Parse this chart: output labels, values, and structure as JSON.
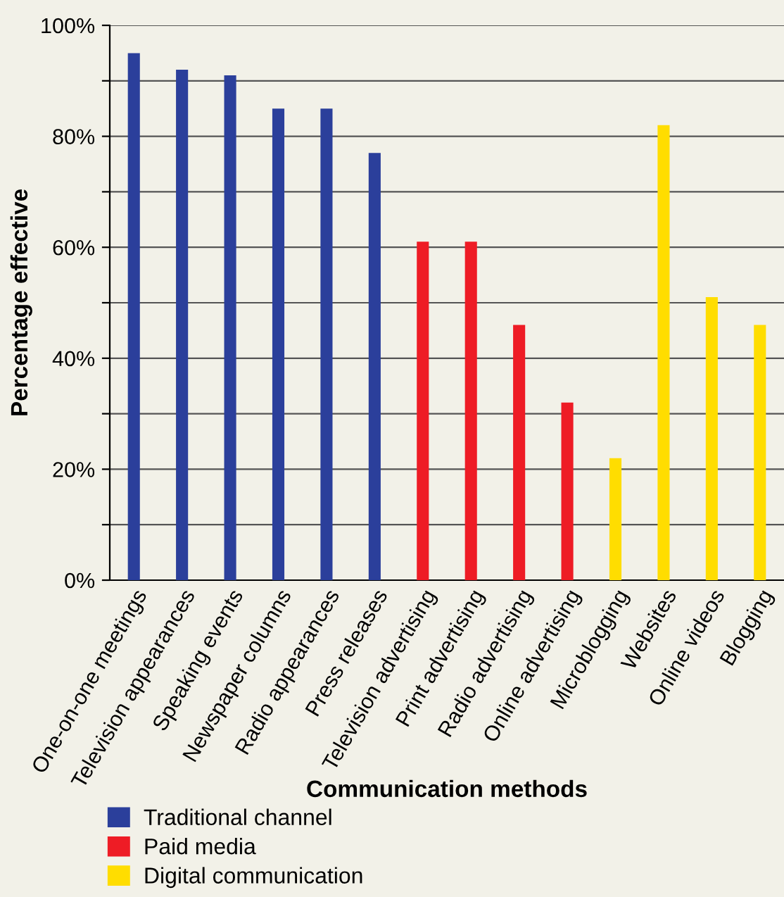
{
  "chart_data": {
    "type": "bar",
    "xlabel": "Communication methods",
    "ylabel": "Percentage effective",
    "categories": [
      "One-on-one meetings",
      "Television appearances",
      "Speaking events",
      "Newspaper columns",
      "Radio appearances",
      "Press releases",
      "Television advertising",
      "Print advertising",
      "Radio advertising",
      "Online advertising",
      "Microblogging",
      "Websites",
      "Online videos",
      "Blogging"
    ],
    "series": [
      {
        "name": "Traditional channel",
        "color": "#2b3f9b",
        "values": [
          95,
          92,
          91,
          85,
          85,
          77,
          null,
          null,
          null,
          null,
          null,
          null,
          null,
          null
        ]
      },
      {
        "name": "Paid media",
        "color": "#ee1c25",
        "values": [
          null,
          null,
          null,
          null,
          null,
          null,
          61,
          61,
          46,
          32,
          null,
          null,
          null,
          null
        ]
      },
      {
        "name": "Digital communication",
        "color": "#ffdd00",
        "values": [
          null,
          null,
          null,
          null,
          null,
          null,
          null,
          null,
          null,
          null,
          22,
          82,
          51,
          46
        ]
      }
    ],
    "ylim": [
      0,
      100
    ],
    "yticks": [
      {
        "value": 0,
        "label": "0%"
      },
      {
        "value": 10,
        "label": null
      },
      {
        "value": 20,
        "label": "20%"
      },
      {
        "value": 30,
        "label": null
      },
      {
        "value": 40,
        "label": "40%"
      },
      {
        "value": 50,
        "label": null
      },
      {
        "value": 60,
        "label": "60%"
      },
      {
        "value": 70,
        "label": null
      },
      {
        "value": 80,
        "label": "80%"
      },
      {
        "value": 90,
        "label": null
      },
      {
        "value": 100,
        "label": "100%"
      }
    ],
    "grid": "y",
    "legend": "bottom left"
  }
}
